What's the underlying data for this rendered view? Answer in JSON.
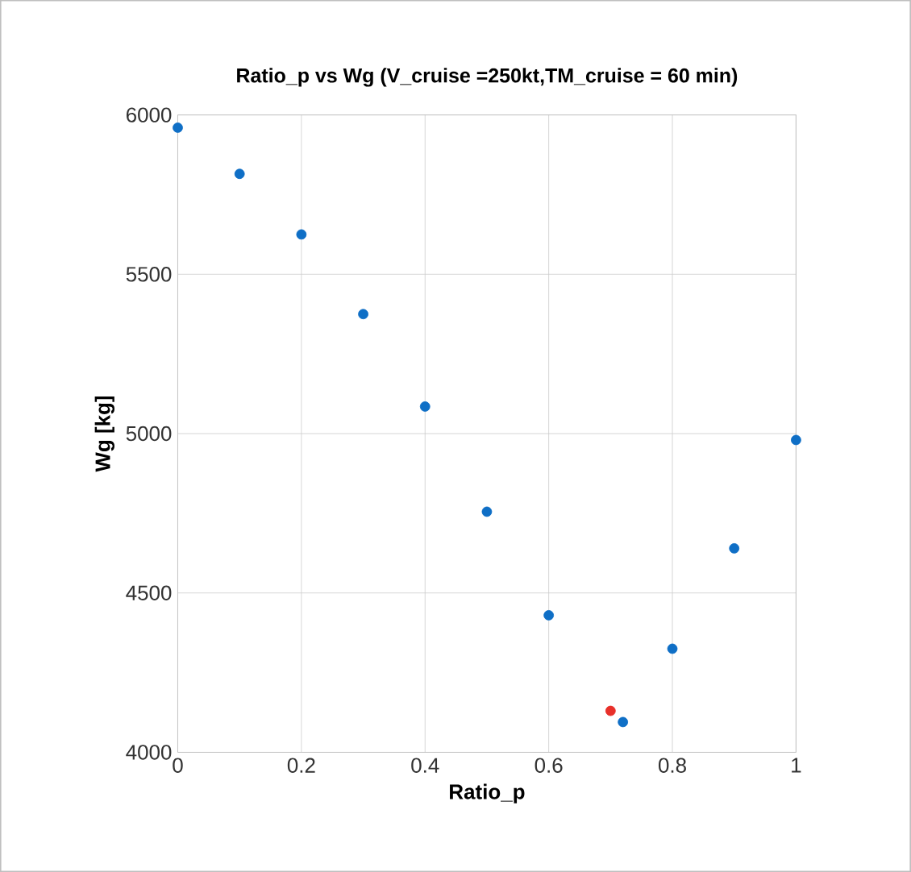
{
  "chart_data": {
    "type": "scatter",
    "title": "Ratio_p vs Wg (V_cruise =250kt,TM_cruise = 60 min)",
    "xlabel": "Ratio_p",
    "ylabel": "Wg [kg]",
    "series": [
      {
        "color": "#0f6fc6",
        "x": [
          0,
          0.1,
          0.2,
          0.3,
          0.4,
          0.5,
          0.6,
          0.72,
          0.8,
          0.9,
          1.0
        ],
        "values": [
          5960,
          5815,
          5625,
          5375,
          5085,
          4755,
          4430,
          4095,
          4325,
          4640,
          4980
        ]
      },
      {
        "color": "#e8302a",
        "x": [
          0.7
        ],
        "values": [
          4130
        ]
      }
    ],
    "xlim": [
      0,
      1
    ],
    "ylim": [
      4000,
      6000
    ],
    "xticks": [
      0,
      0.2,
      0.4,
      0.6,
      0.8,
      1
    ],
    "yticks": [
      4000,
      4500,
      5000,
      5500,
      6000
    ],
    "grid": true
  }
}
